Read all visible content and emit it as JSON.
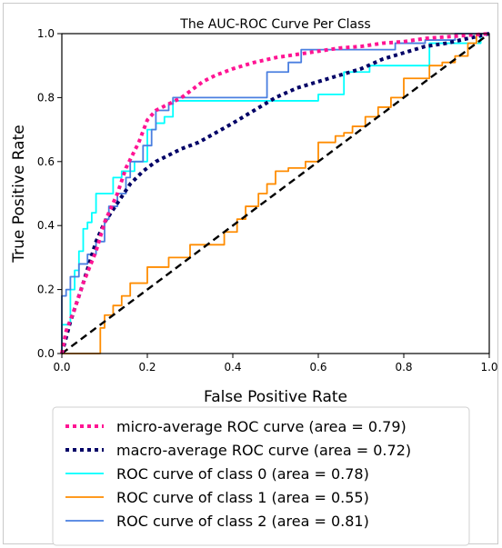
{
  "chart_data": {
    "type": "line",
    "title": "The AUC-ROC Curve Per Class",
    "xlabel": "False Positive Rate",
    "ylabel": "True Positive Rate",
    "xlim": [
      0.0,
      1.0
    ],
    "ylim": [
      0.0,
      1.0
    ],
    "xticks": [
      "0.0",
      "0.2",
      "0.4",
      "0.6",
      "0.8",
      "1.0"
    ],
    "yticks": [
      "0.0",
      "0.2",
      "0.4",
      "0.6",
      "0.8",
      "1.0"
    ],
    "grid": false,
    "legend_position": "below plot",
    "series": [
      {
        "name": "micro-average ROC curve (area = 0.79)",
        "color": "#ff1493",
        "style": "dotted-thick",
        "x": [
          0.0,
          0.01,
          0.03,
          0.05,
          0.08,
          0.1,
          0.13,
          0.15,
          0.18,
          0.2,
          0.22,
          0.25,
          0.28,
          0.3,
          0.33,
          0.36,
          0.4,
          0.45,
          0.5,
          0.55,
          0.6,
          0.65,
          0.7,
          0.75,
          0.8,
          0.85,
          0.9,
          0.95,
          1.0
        ],
        "y": [
          0.0,
          0.07,
          0.14,
          0.22,
          0.32,
          0.41,
          0.5,
          0.58,
          0.66,
          0.73,
          0.76,
          0.78,
          0.8,
          0.82,
          0.85,
          0.87,
          0.89,
          0.91,
          0.925,
          0.935,
          0.945,
          0.955,
          0.96,
          0.97,
          0.975,
          0.985,
          0.99,
          0.995,
          1.0
        ]
      },
      {
        "name": "macro-average ROC curve (area = 0.72)",
        "color": "#000066",
        "style": "dotted-thick",
        "x": [
          0.0,
          0.02,
          0.05,
          0.08,
          0.1,
          0.13,
          0.16,
          0.19,
          0.22,
          0.25,
          0.28,
          0.32,
          0.36,
          0.4,
          0.45,
          0.5,
          0.55,
          0.6,
          0.65,
          0.7,
          0.75,
          0.8,
          0.85,
          0.9,
          0.95,
          1.0
        ],
        "y": [
          0.0,
          0.1,
          0.22,
          0.35,
          0.41,
          0.47,
          0.53,
          0.57,
          0.6,
          0.62,
          0.64,
          0.66,
          0.69,
          0.72,
          0.76,
          0.8,
          0.83,
          0.85,
          0.87,
          0.89,
          0.92,
          0.94,
          0.96,
          0.97,
          0.985,
          1.0
        ]
      },
      {
        "name": "ROC curve of class 0 (area = 0.78)",
        "color": "#00ffff",
        "style": "solid",
        "x": [
          0.0,
          0.0,
          0.02,
          0.02,
          0.03,
          0.03,
          0.04,
          0.04,
          0.05,
          0.05,
          0.06,
          0.06,
          0.07,
          0.07,
          0.08,
          0.08,
          0.1,
          0.1,
          0.12,
          0.12,
          0.14,
          0.14,
          0.17,
          0.17,
          0.2,
          0.2,
          0.22,
          0.22,
          0.24,
          0.24,
          0.26,
          0.26,
          0.29,
          0.29,
          0.46,
          0.46,
          0.6,
          0.6,
          0.66,
          0.66,
          0.72,
          0.72,
          0.86,
          0.86,
          0.98,
          0.98,
          1.0
        ],
        "y": [
          0.0,
          0.09,
          0.09,
          0.2,
          0.2,
          0.26,
          0.26,
          0.32,
          0.32,
          0.39,
          0.39,
          0.41,
          0.41,
          0.44,
          0.44,
          0.5,
          0.5,
          0.5,
          0.5,
          0.55,
          0.55,
          0.57,
          0.57,
          0.6,
          0.6,
          0.7,
          0.7,
          0.72,
          0.72,
          0.74,
          0.74,
          0.79,
          0.79,
          0.79,
          0.79,
          0.79,
          0.79,
          0.81,
          0.81,
          0.88,
          0.88,
          0.9,
          0.9,
          0.97,
          0.97,
          1.0,
          1.0
        ]
      },
      {
        "name": "ROC curve of class 1 (area = 0.55)",
        "color": "#ff8c00",
        "style": "solid",
        "x": [
          0.0,
          0.09,
          0.09,
          0.1,
          0.1,
          0.12,
          0.12,
          0.14,
          0.14,
          0.16,
          0.16,
          0.2,
          0.2,
          0.25,
          0.25,
          0.3,
          0.3,
          0.38,
          0.38,
          0.41,
          0.41,
          0.43,
          0.43,
          0.46,
          0.46,
          0.48,
          0.48,
          0.5,
          0.5,
          0.53,
          0.53,
          0.57,
          0.57,
          0.6,
          0.6,
          0.64,
          0.64,
          0.66,
          0.66,
          0.68,
          0.68,
          0.71,
          0.71,
          0.74,
          0.74,
          0.77,
          0.77,
          0.8,
          0.8,
          0.82,
          0.82,
          0.86,
          0.86,
          0.89,
          0.89,
          0.92,
          0.92,
          0.95,
          0.95,
          0.97,
          0.97,
          1.0
        ],
        "y": [
          0.0,
          0.0,
          0.08,
          0.08,
          0.12,
          0.12,
          0.15,
          0.15,
          0.18,
          0.18,
          0.22,
          0.22,
          0.27,
          0.27,
          0.3,
          0.3,
          0.34,
          0.34,
          0.38,
          0.38,
          0.42,
          0.42,
          0.46,
          0.46,
          0.5,
          0.5,
          0.53,
          0.53,
          0.57,
          0.57,
          0.58,
          0.58,
          0.6,
          0.6,
          0.66,
          0.66,
          0.68,
          0.68,
          0.69,
          0.69,
          0.71,
          0.71,
          0.74,
          0.74,
          0.77,
          0.77,
          0.8,
          0.8,
          0.86,
          0.86,
          0.86,
          0.86,
          0.9,
          0.9,
          0.91,
          0.91,
          0.93,
          0.93,
          0.97,
          0.97,
          1.0,
          1.0
        ]
      },
      {
        "name": "ROC curve of class 2 (area = 0.81)",
        "color": "#4a7fe0",
        "style": "solid",
        "x": [
          0.0,
          0.0,
          0.01,
          0.01,
          0.02,
          0.02,
          0.04,
          0.04,
          0.06,
          0.06,
          0.08,
          0.08,
          0.1,
          0.1,
          0.11,
          0.11,
          0.13,
          0.13,
          0.15,
          0.15,
          0.16,
          0.16,
          0.19,
          0.19,
          0.21,
          0.21,
          0.22,
          0.22,
          0.25,
          0.25,
          0.26,
          0.26,
          0.48,
          0.48,
          0.53,
          0.53,
          0.56,
          0.56,
          0.78,
          0.78,
          0.85,
          0.85,
          0.92,
          0.92,
          0.99,
          0.99,
          1.0
        ],
        "y": [
          0.0,
          0.18,
          0.18,
          0.2,
          0.2,
          0.24,
          0.24,
          0.28,
          0.28,
          0.31,
          0.31,
          0.35,
          0.35,
          0.42,
          0.42,
          0.46,
          0.46,
          0.5,
          0.5,
          0.55,
          0.55,
          0.6,
          0.6,
          0.65,
          0.65,
          0.7,
          0.7,
          0.76,
          0.76,
          0.78,
          0.78,
          0.8,
          0.8,
          0.88,
          0.88,
          0.91,
          0.91,
          0.95,
          0.95,
          0.97,
          0.97,
          0.98,
          0.98,
          1.0,
          1.0,
          1.0,
          1.0
        ]
      },
      {
        "name": "",
        "color": "#000000",
        "style": "dashed",
        "x": [
          0.0,
          1.0
        ],
        "y": [
          0.0,
          1.0
        ]
      }
    ],
    "legend": [
      {
        "label": "micro-average ROC curve (area = 0.79)",
        "color": "#ff1493",
        "style": "dotted-thick"
      },
      {
        "label": "macro-average ROC curve (area = 0.72)",
        "color": "#000066",
        "style": "dotted-thick"
      },
      {
        "label": "ROC curve of class 0 (area = 0.78)",
        "color": "#00ffff",
        "style": "solid"
      },
      {
        "label": "ROC curve of class 1 (area = 0.55)",
        "color": "#ff8c00",
        "style": "solid"
      },
      {
        "label": "ROC curve of class 2 (area = 0.81)",
        "color": "#4a7fe0",
        "style": "solid"
      }
    ]
  }
}
